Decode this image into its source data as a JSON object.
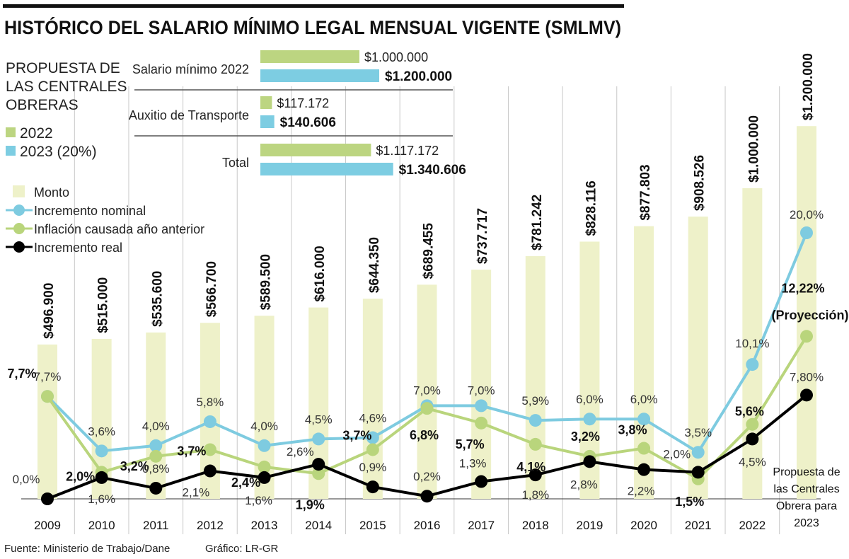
{
  "title": "HISTÓRICO DEL SALARIO MÍNIMO LEGAL MENSUAL VIGENTE (SMLMV)",
  "proposal_legend": {
    "heading": [
      "PROPUESTA DE",
      "LAS CENTRALES",
      "OBRERAS"
    ],
    "items": [
      {
        "label": "2022",
        "color": "#bcd581"
      },
      {
        "label": "2023 (20%)",
        "color": "#7dcde2"
      }
    ]
  },
  "proposal_table": {
    "rows": [
      {
        "label": "Salario mínimo 2022",
        "v2022": 1000000,
        "v2022_label": "$1.000.000",
        "v2023": 1200000,
        "v2023_label": "$1.200.000"
      },
      {
        "label": "Auxitio de Transporte",
        "v2022": 117172,
        "v2022_label": "$117.172",
        "v2023": 140606,
        "v2023_label": "$140.606"
      },
      {
        "label": "Total",
        "v2022": 1117172,
        "v2022_label": "$1.117.172",
        "v2023": 1340606,
        "v2023_label": "$1.340.606"
      }
    ]
  },
  "footer": {
    "source": "Fuente: Ministerio de Trabajo/Dane",
    "credit": "Gráfico: LR-GR"
  },
  "chart_data": {
    "type": "bar+line",
    "title": "HISTÓRICO DEL SALARIO MÍNIMO LEGAL MENSUAL VIGENTE (SMLMV)",
    "categories": [
      "2009",
      "2010",
      "2011",
      "2012",
      "2013",
      "2014",
      "2015",
      "2016",
      "2017",
      "2018",
      "2019",
      "2020",
      "2021",
      "2022",
      "Propuesta de|las Centrales|Obrera para|2023"
    ],
    "legend": [
      "Monto",
      "Incremento nominal",
      "Inflación causada año anterior",
      "Incremento real"
    ],
    "legend_placement": "top-left",
    "bars": {
      "name": "Monto",
      "color": "#eef1c9",
      "values": [
        496900,
        515000,
        535600,
        566700,
        589500,
        616000,
        644350,
        689455,
        737717,
        781242,
        828116,
        877803,
        908526,
        1000000,
        1200000
      ],
      "labels": [
        "$496.900",
        "$515.000",
        "$535.600",
        "$566.700",
        "$589.500",
        "$616.000",
        "$644.350",
        "$689.455",
        "$737.717",
        "$781.242",
        "$828.116",
        "$877.803",
        "$908.526",
        "$1.000.000",
        "$1.200.000"
      ]
    },
    "series": [
      {
        "name": "Incremento nominal",
        "color": "#7ecbe0",
        "values": [
          7.7,
          3.6,
          4.0,
          5.8,
          4.0,
          4.5,
          4.6,
          7.0,
          7.0,
          5.9,
          6.0,
          6.0,
          3.5,
          10.1,
          20.0
        ],
        "labels": [
          "7,7%",
          "3,6%",
          "4,0%",
          "5,8%",
          "4,0%",
          "4,5%",
          "4,6%",
          "7,0%",
          "7,0%",
          "5,9%",
          "6,0%",
          "6,0%",
          "3,5%",
          "10,1%",
          "20,0%"
        ]
      },
      {
        "name": "Inflación causada año anterior",
        "color": "#b9d57c",
        "values": [
          7.7,
          2.0,
          3.2,
          3.7,
          2.4,
          1.9,
          3.7,
          6.8,
          5.7,
          4.1,
          3.2,
          3.8,
          1.5,
          5.6,
          12.22
        ],
        "labels": [
          "7,7%",
          "2,0%",
          "3,2%",
          "3,7%",
          "2,4%",
          "1,9%",
          "3,7%",
          "6,8%",
          "5,7%",
          "4,1%",
          "3,2%",
          "3,8%",
          "1,5%",
          "5,6%",
          "12,22%"
        ],
        "annotation": "(Proyección)"
      },
      {
        "name": "Incremento real",
        "color": "#000000",
        "values": [
          0.0,
          1.6,
          0.8,
          2.1,
          1.6,
          2.6,
          0.9,
          0.2,
          1.3,
          1.8,
          2.8,
          2.2,
          2.0,
          4.5,
          7.8
        ],
        "labels": [
          "0,0%",
          "1,6%",
          "0,8%",
          "2,1%",
          "1,6%",
          "2,6%",
          "0,9%",
          "0,2%",
          "1,3%",
          "1,8%",
          "2,8%",
          "2,2%",
          "2,0%",
          "4,5%",
          "7,80%"
        ]
      }
    ],
    "grid": true
  }
}
